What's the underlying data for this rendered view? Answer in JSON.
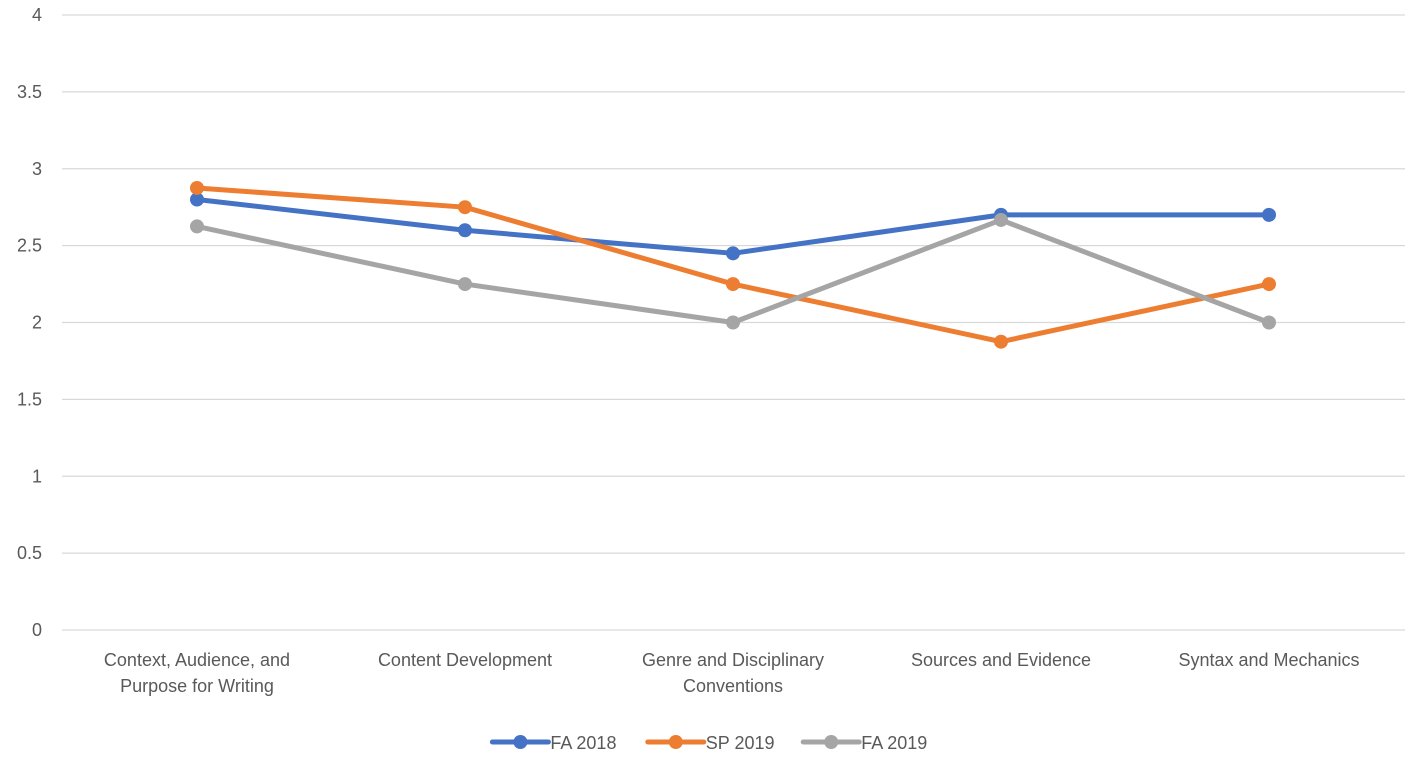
{
  "chart_data": {
    "type": "line",
    "title": "",
    "xlabel": "",
    "ylabel": "",
    "ylim": [
      0,
      4
    ],
    "yticks": [
      "0",
      "0.5",
      "1",
      "1.5",
      "2",
      "2.5",
      "3",
      "3.5",
      "4"
    ],
    "grid": true,
    "legend_position": "bottom",
    "categories": [
      [
        "Context, Audience, and",
        "Purpose for Writing"
      ],
      [
        "Content Development"
      ],
      [
        "Genre and Disciplinary",
        "Conventions"
      ],
      [
        "Sources and Evidence"
      ],
      [
        "Syntax and Mechanics"
      ]
    ],
    "series": [
      {
        "name": "FA 2018",
        "color": "#4472c4",
        "values": [
          2.8,
          2.6,
          2.45,
          2.7,
          2.7
        ]
      },
      {
        "name": "SP 2019",
        "color": "#ed7d31",
        "values": [
          2.875,
          2.75,
          2.25,
          1.875,
          2.25
        ]
      },
      {
        "name": "FA 2019",
        "color": "#a5a5a5",
        "values": [
          2.625,
          2.25,
          2.0,
          2.667,
          2.0
        ]
      }
    ]
  }
}
